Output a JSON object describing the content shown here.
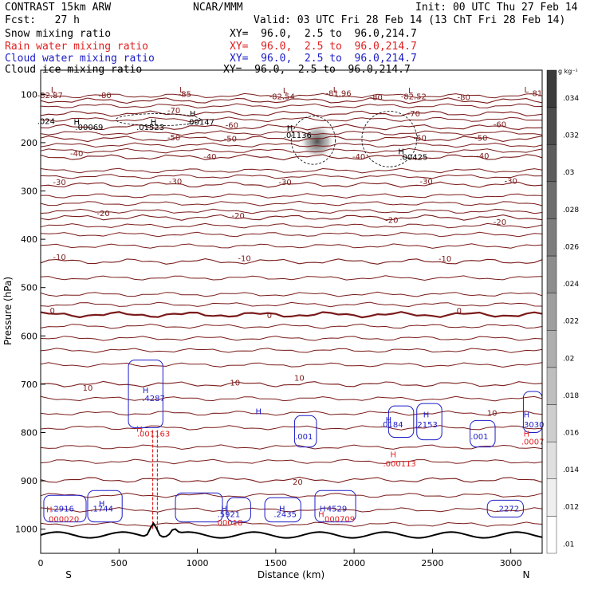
{
  "header": {
    "model": "CONTRAST 15km ARW",
    "org": "NCAR/MMM",
    "init": "Init: 00 UTC Thu 27 Feb 14",
    "fcst": "Fcst:   27 h",
    "valid": "Valid: 03 UTC Fri 28 Feb 14 (13 ChT Fri 28 Feb 14)",
    "fields": [
      {
        "name": "Snow mixing ratio",
        "xy": "XY=  96.0,  2.5 to  96.0,214.7",
        "color": "#000000"
      },
      {
        "name": "Rain water mixing ratio",
        "xy": "XY=  96.0,  2.5 to  96.0,214.7",
        "color": "#e02020"
      },
      {
        "name": "Cloud water mixing ratio",
        "xy": "XY=  96.0,  2.5 to  96.0,214.7",
        "color": "#1c1cc8"
      },
      {
        "name": "Cloud ice mixing ratio",
        "xy": "XY=  96.0,  2.5 to  96.0,214.7",
        "color": "#000000"
      }
    ]
  },
  "colors": {
    "temperature": "#7a1a1a",
    "rain": "#e02020",
    "cloud_water": "#1c1cc8",
    "snow": "#000000",
    "terrain": "#000000"
  },
  "chart_data": {
    "type": "heatmap",
    "title": "",
    "xlabel": "Distance (km)",
    "ylabel": "Pressure (hPa)",
    "xlim": [
      0,
      3200
    ],
    "ylim": [
      1050,
      50
    ],
    "x_ticks": [
      "0",
      "500",
      "1000",
      "1500",
      "2000",
      "2500",
      "3000"
    ],
    "x_tick_values": [
      0,
      500,
      1000,
      1500,
      2000,
      2500,
      3000
    ],
    "y_ticks": [
      "100",
      "200",
      "300",
      "400",
      "500",
      "600",
      "700",
      "800",
      "900",
      "1000"
    ],
    "y_tick_values": [
      100,
      200,
      300,
      400,
      500,
      600,
      700,
      800,
      900,
      1000
    ],
    "x_end_labels": {
      "left": "S",
      "right": "N"
    },
    "colorbar": {
      "unit": "g kg⁻¹",
      "labels": [
        ".034",
        ".032",
        ".03",
        ".028",
        ".026",
        ".024",
        ".022",
        ".02",
        ".018",
        ".016",
        ".014",
        ".012",
        ".01"
      ],
      "values": [
        0.034,
        0.032,
        0.03,
        0.028,
        0.026,
        0.024,
        0.022,
        0.02,
        0.018,
        0.016,
        0.014,
        0.012,
        0.01
      ]
    },
    "temperature_contours": [
      {
        "label": "-80",
        "level": -80,
        "p": 113
      },
      {
        "label": "-70",
        "level": -70,
        "p": 140
      },
      {
        "label": "-60",
        "level": -60,
        "p": 168
      },
      {
        "label": "-50",
        "level": -50,
        "p": 192
      },
      {
        "label": "-40",
        "level": -40,
        "p": 230
      },
      {
        "label": "-30",
        "level": -30,
        "p": 287
      },
      {
        "label": "-20",
        "level": -20,
        "p": 355
      },
      {
        "label": "-10",
        "level": -10,
        "p": 446
      },
      {
        "label": "0",
        "level": 0,
        "p": 556
      },
      {
        "label": "10",
        "level": 10,
        "p": 700
      },
      {
        "label": "20",
        "level": 20,
        "p": 898
      }
    ],
    "temperature_extra_lines": [
      103,
      124,
      152,
      180,
      205,
      217,
      258,
      270,
      310,
      326,
      342,
      372,
      390,
      414,
      480,
      514,
      535,
      580,
      605,
      630,
      660,
      730,
      760,
      790,
      830,
      860,
      930,
      960,
      990
    ],
    "temperature_labels": [
      {
        "text": "-82.87",
        "x": 60,
        "p": 108
      },
      {
        "text": "-80",
        "x": 410,
        "p": 108
      },
      {
        "text": "-85",
        "x": 920,
        "p": 105
      },
      {
        "text": "-82.54",
        "x": 1540,
        "p": 110
      },
      {
        "text": "-81.96",
        "x": 1900,
        "p": 104
      },
      {
        "text": "-80",
        "x": 2140,
        "p": 112
      },
      {
        "text": "-82.52",
        "x": 2380,
        "p": 110
      },
      {
        "text": "-80",
        "x": 2700,
        "p": 112
      },
      {
        "text": "-81",
        "x": 3160,
        "p": 104
      },
      {
        "text": "-70",
        "x": 850,
        "p": 139
      },
      {
        "text": "-70",
        "x": 2380,
        "p": 146
      },
      {
        "text": "-60",
        "x": 1220,
        "p": 170
      },
      {
        "text": "-60",
        "x": 2930,
        "p": 168
      },
      {
        "text": "-50",
        "x": 850,
        "p": 195
      },
      {
        "text": "-50",
        "x": 1210,
        "p": 198
      },
      {
        "text": "-50",
        "x": 2420,
        "p": 196
      },
      {
        "text": "-50",
        "x": 2810,
        "p": 196
      },
      {
        "text": "-40",
        "x": 230,
        "p": 228
      },
      {
        "text": "-40",
        "x": 1080,
        "p": 235
      },
      {
        "text": "-40",
        "x": 2030,
        "p": 235
      },
      {
        "text": "-40",
        "x": 2820,
        "p": 233
      },
      {
        "text": "-30",
        "x": 120,
        "p": 288
      },
      {
        "text": "-30",
        "x": 860,
        "p": 286
      },
      {
        "text": "-30",
        "x": 1560,
        "p": 288
      },
      {
        "text": "-30",
        "x": 2460,
        "p": 286
      },
      {
        "text": "-30",
        "x": 3000,
        "p": 285
      },
      {
        "text": "-20",
        "x": 400,
        "p": 352
      },
      {
        "text": "-20",
        "x": 1260,
        "p": 357
      },
      {
        "text": "-20",
        "x": 2240,
        "p": 366
      },
      {
        "text": "-20",
        "x": 2930,
        "p": 370
      },
      {
        "text": "-10",
        "x": 120,
        "p": 443
      },
      {
        "text": "-10",
        "x": 1300,
        "p": 445
      },
      {
        "text": "-10",
        "x": 2580,
        "p": 446
      },
      {
        "text": "0",
        "x": 75,
        "p": 553
      },
      {
        "text": "0",
        "x": 1460,
        "p": 563
      },
      {
        "text": "0",
        "x": 2670,
        "p": 553
      },
      {
        "text": "10",
        "x": 300,
        "p": 713
      },
      {
        "text": "10",
        "x": 1240,
        "p": 703
      },
      {
        "text": "10",
        "x": 1650,
        "p": 693
      },
      {
        "text": "10",
        "x": 2880,
        "p": 765
      },
      {
        "text": "20",
        "x": 1640,
        "p": 908
      }
    ],
    "snow_labels": [
      {
        "text": "H",
        "x": 970,
        "p": 146
      },
      {
        "text": "H",
        "x": 230,
        "p": 163
      },
      {
        "text": "H",
        "x": 720,
        "p": 163
      },
      {
        "text": "H",
        "x": 1590,
        "p": 175
      },
      {
        "text": "H",
        "x": 2300,
        "p": 224
      },
      {
        "text": ".00147",
        "x": 1020,
        "p": 163
      },
      {
        "text": ".024",
        "x": 35,
        "p": 161
      },
      {
        "text": ".00069",
        "x": 310,
        "p": 174
      },
      {
        "text": ".01523",
        "x": 700,
        "p": 174
      },
      {
        "text": ".01136",
        "x": 1640,
        "p": 190
      },
      {
        "text": ".00425",
        "x": 2380,
        "p": 236
      }
    ],
    "cloud_water_labels": [
      {
        "text": "H",
        "x": 670,
        "p": 718
      },
      {
        "text": ".4287",
        "x": 720,
        "p": 735
      },
      {
        "text": "H",
        "x": 1390,
        "p": 762
      },
      {
        "text": ".001",
        "x": 1680,
        "p": 814
      },
      {
        "text": "H",
        "x": 2220,
        "p": 779
      },
      {
        "text": ".0184",
        "x": 2240,
        "p": 789
      },
      {
        "text": "H",
        "x": 2460,
        "p": 769
      },
      {
        "text": ".2153",
        "x": 2460,
        "p": 789
      },
      {
        "text": ".001",
        "x": 2800,
        "p": 814
      },
      {
        "text": "H",
        "x": 3100,
        "p": 769
      },
      {
        "text": ".3030",
        "x": 3140,
        "p": 789
      },
      {
        "text": ".2916",
        "x": 140,
        "p": 963
      },
      {
        "text": "H",
        "x": 390,
        "p": 953
      },
      {
        "text": ".1744",
        "x": 390,
        "p": 963
      },
      {
        "text": "H",
        "x": 1170,
        "p": 963
      },
      {
        "text": ".5921",
        "x": 1200,
        "p": 975
      },
      {
        "text": "H",
        "x": 1540,
        "p": 963
      },
      {
        "text": ".2435",
        "x": 1560,
        "p": 975
      },
      {
        "text": "H",
        "x": 1800,
        "p": 963
      },
      {
        "text": "4529",
        "x": 1890,
        "p": 963
      },
      {
        "text": ".2272",
        "x": 2980,
        "p": 963
      }
    ],
    "rain_labels": [
      {
        "text": ".001163",
        "x": 720,
        "p": 808
      },
      {
        "text": "H",
        "x": 630,
        "p": 798
      },
      {
        "text": "H",
        "x": 2250,
        "p": 851
      },
      {
        "text": ".000113",
        "x": 2290,
        "p": 870
      },
      {
        "text": "H",
        "x": 3100,
        "p": 808
      },
      {
        "text": ".0007",
        "x": 3140,
        "p": 825
      },
      {
        "text": "H",
        "x": 55,
        "p": 965
      },
      {
        "text": ".000020",
        "x": 140,
        "p": 985
      },
      {
        "text": ".00018",
        "x": 1200,
        "p": 992
      },
      {
        "text": "H",
        "x": 1790,
        "p": 975
      },
      {
        "text": ".000709",
        "x": 1900,
        "p": 985
      }
    ],
    "low_markers": [
      {
        "text": "L",
        "x": 80,
        "p": 96
      },
      {
        "text": "L",
        "x": 900,
        "p": 96
      },
      {
        "text": "L",
        "x": 1560,
        "p": 98
      },
      {
        "text": "L",
        "x": 1880,
        "p": 96
      },
      {
        "text": "L",
        "x": 2360,
        "p": 98
      },
      {
        "text": "L",
        "x": 3100,
        "p": 96
      }
    ],
    "snow_max_region": {
      "x": [
        1650,
        1880
      ],
      "p": [
        160,
        235
      ],
      "max": 0.034
    }
  }
}
